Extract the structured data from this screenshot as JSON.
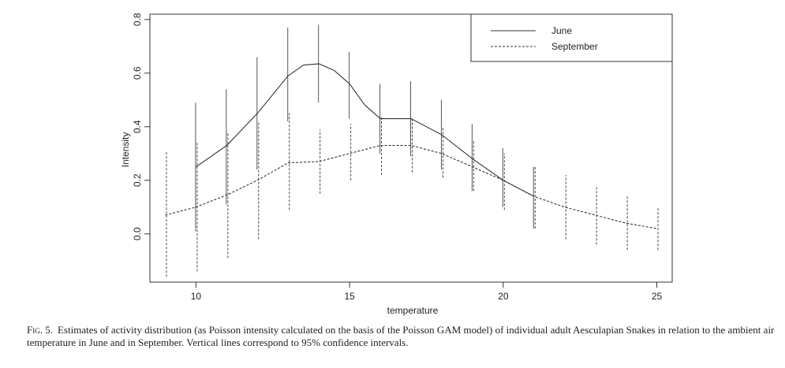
{
  "chart_data": {
    "type": "line",
    "title": "",
    "xlabel": "temperature",
    "ylabel": "Intensity",
    "xlim": [
      8.5,
      25.5
    ],
    "ylim": [
      -0.18,
      0.82
    ],
    "xticks": [
      "10",
      "15",
      "20",
      "25"
    ],
    "yticks": [
      "0.0",
      "0.2",
      "0.4",
      "0.6",
      "0.8"
    ],
    "legend_position": "top-right",
    "grid": false,
    "series": [
      {
        "name": "June",
        "style": "solid",
        "x": [
          10,
          11,
          12,
          13,
          13.5,
          14,
          14.5,
          15,
          15.5,
          16,
          16.5,
          17,
          17.5,
          18,
          19,
          20,
          21
        ],
        "values": [
          0.25,
          0.33,
          0.45,
          0.59,
          0.63,
          0.635,
          0.61,
          0.56,
          0.48,
          0.43,
          0.43,
          0.43,
          0.4,
          0.37,
          0.28,
          0.2,
          0.14
        ],
        "ci_x": [
          10,
          11,
          12,
          13,
          14,
          15,
          16,
          17,
          18,
          19,
          20,
          21
        ],
        "ci_low": [
          0.01,
          0.11,
          0.24,
          0.42,
          0.49,
          0.43,
          0.3,
          0.29,
          0.24,
          0.16,
          0.1,
          0.02
        ],
        "ci_high": [
          0.49,
          0.54,
          0.66,
          0.77,
          0.78,
          0.68,
          0.56,
          0.57,
          0.5,
          0.41,
          0.32,
          0.25
        ]
      },
      {
        "name": "September",
        "style": "dashed",
        "x": [
          9,
          10,
          11,
          12,
          13,
          14,
          15,
          16,
          17,
          18,
          19,
          20,
          21,
          22,
          23,
          24,
          25
        ],
        "values": [
          0.07,
          0.1,
          0.145,
          0.2,
          0.265,
          0.27,
          0.3,
          0.33,
          0.33,
          0.3,
          0.25,
          0.2,
          0.14,
          0.1,
          0.07,
          0.04,
          0.02
        ],
        "ci_x": [
          9,
          10,
          11,
          12,
          13,
          14,
          15,
          16,
          17,
          18,
          19,
          20,
          21,
          22,
          23,
          24,
          25
        ],
        "ci_low": [
          -0.16,
          -0.14,
          -0.09,
          -0.02,
          0.09,
          0.15,
          0.2,
          0.22,
          0.23,
          0.21,
          0.16,
          0.09,
          0.02,
          -0.02,
          -0.04,
          -0.06,
          -0.06
        ],
        "ci_high": [
          0.31,
          0.34,
          0.38,
          0.42,
          0.45,
          0.39,
          0.41,
          0.44,
          0.43,
          0.4,
          0.35,
          0.3,
          0.25,
          0.22,
          0.18,
          0.14,
          0.1
        ]
      }
    ]
  },
  "caption": {
    "label": "Fig. 5.",
    "text": "Estimates of activity distribution (as Poisson intensity calculated on the basis of the Poisson GAM model) of individual adult Aesculapian Snakes in relation to the ambient air temperature in June and in September. Vertical lines correspond to 95% confidence intervals."
  }
}
